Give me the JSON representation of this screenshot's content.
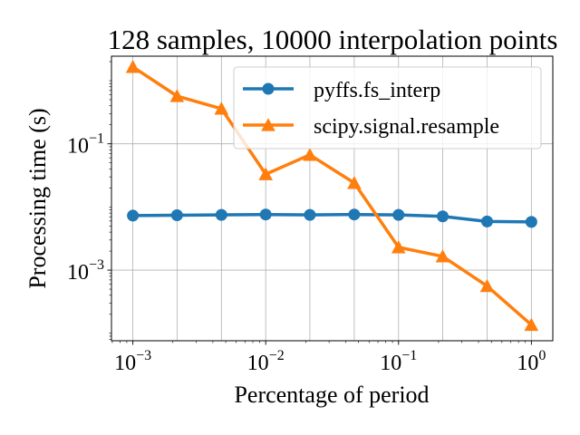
{
  "chart_data": {
    "type": "line",
    "title": "128 samples, 10000 interpolation points",
    "xlabel": "Percentage of period",
    "ylabel": "Processing time (s)",
    "xscale": "log",
    "yscale": "log",
    "xlim": [
      0.00069,
      1.45
    ],
    "ylim": [
      7.62e-05,
      2.44
    ],
    "grid": true,
    "legend_position": "top-right",
    "x": [
      0.001,
      0.00215,
      0.00464,
      0.01,
      0.0215,
      0.0464,
      0.1,
      0.215,
      0.464,
      1.0
    ],
    "x_ticks": [
      {
        "value": 0.001,
        "base": "10",
        "exp": "−3"
      },
      {
        "value": 0.01,
        "base": "10",
        "exp": "−2"
      },
      {
        "value": 0.1,
        "base": "10",
        "exp": "−1"
      },
      {
        "value": 1,
        "base": "10",
        "exp": "0"
      }
    ],
    "y_ticks": [
      {
        "value": 0.1,
        "base": "10",
        "exp": "−1"
      },
      {
        "value": 0.001,
        "base": "10",
        "exp": "−3"
      }
    ],
    "series": [
      {
        "name": "pyffs.fs_interp",
        "color": "#1f77b4",
        "marker": "circle",
        "values": [
          0.0073,
          0.0074,
          0.0075,
          0.0076,
          0.0075,
          0.0076,
          0.0075,
          0.0071,
          0.0059,
          0.0058
        ]
      },
      {
        "name": "scipy.signal.resample",
        "color": "#ff7f0e",
        "marker": "triangle",
        "values": [
          1.65,
          0.57,
          0.36,
          0.033,
          0.067,
          0.024,
          0.0023,
          0.00165,
          0.00056,
          0.000136
        ]
      }
    ]
  }
}
